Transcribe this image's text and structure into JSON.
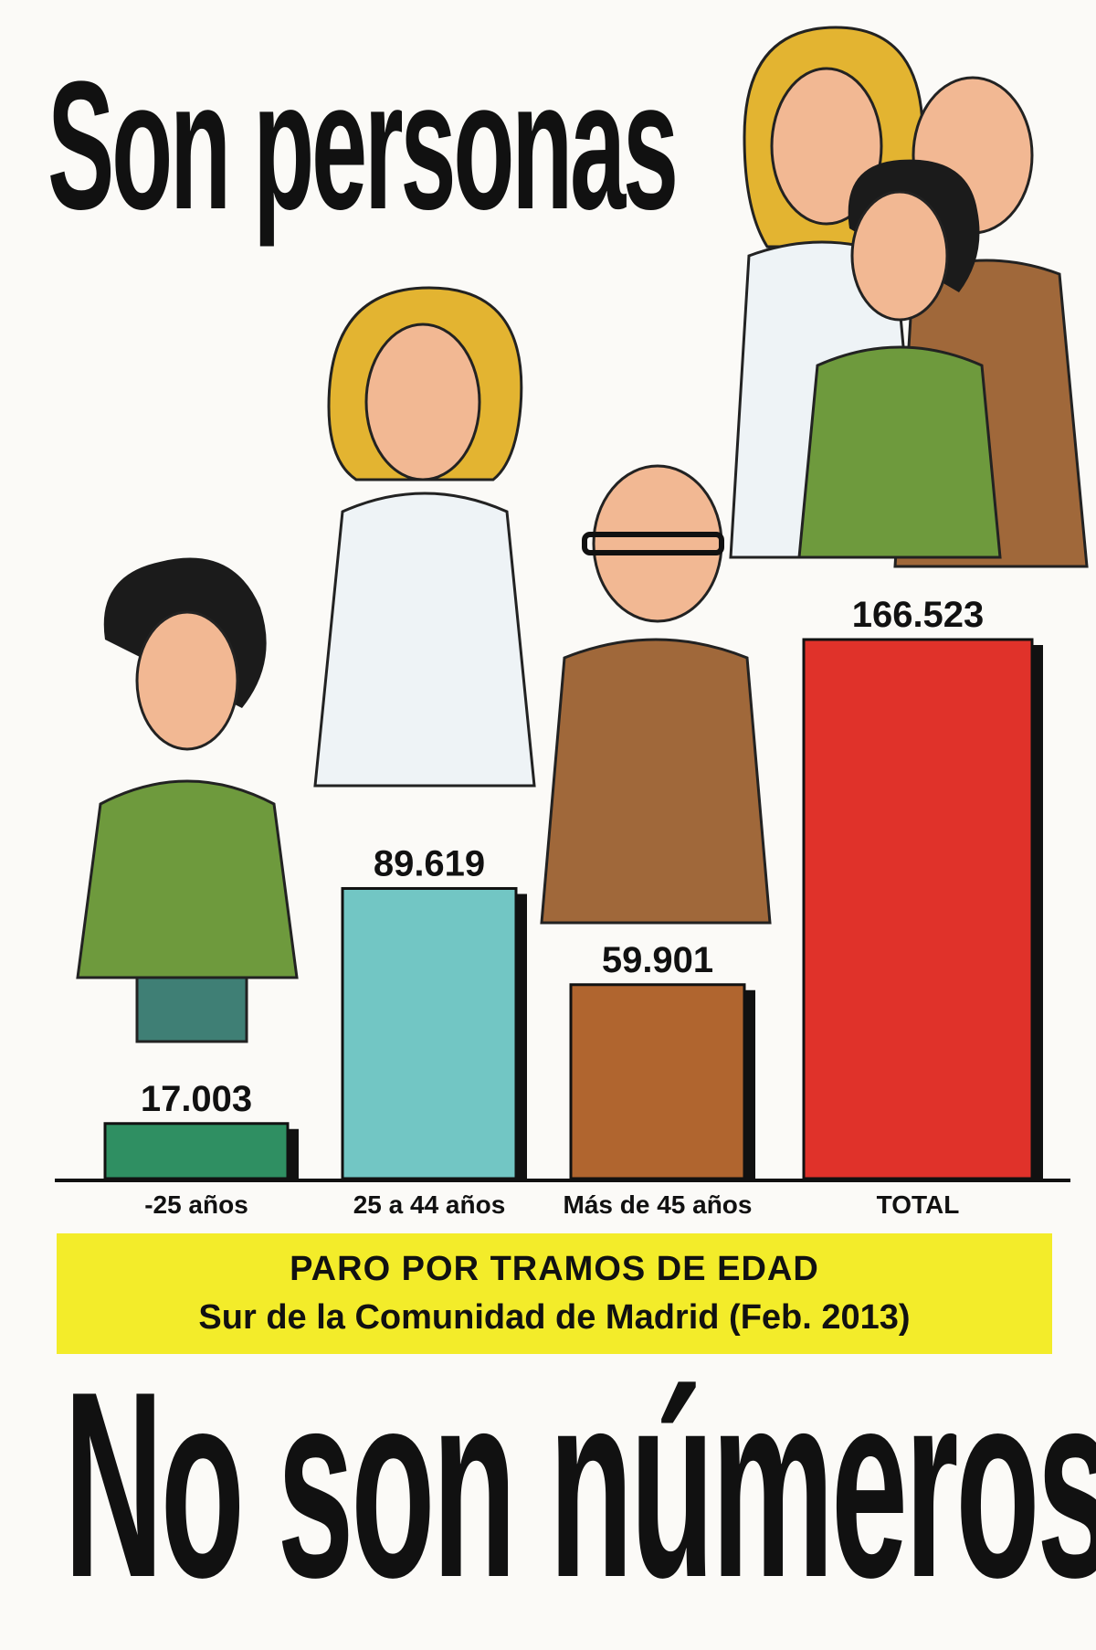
{
  "headline_top": "Son personas",
  "headline_bottom": "No son números",
  "caption": {
    "title": "PARO POR TRAMOS DE EDAD",
    "subtitle": "Sur de la Comunidad de Madrid (Feb. 2013)"
  },
  "chart_data": {
    "type": "bar",
    "categories": [
      "-25 años",
      "25 a 44 años",
      "Más de 45 años",
      "TOTAL"
    ],
    "values": [
      17003,
      89619,
      59901,
      166523
    ],
    "value_labels": [
      "17.003",
      "89.619",
      "59.901",
      "166.523"
    ],
    "colors": [
      "#2f8f62",
      "#72c6c4",
      "#b0652f",
      "#e0322a"
    ],
    "illustrations": [
      "young-man-figure",
      "woman-doctor-figure",
      "older-man-figure",
      "group-figure"
    ],
    "grid": false,
    "legend": "none"
  }
}
